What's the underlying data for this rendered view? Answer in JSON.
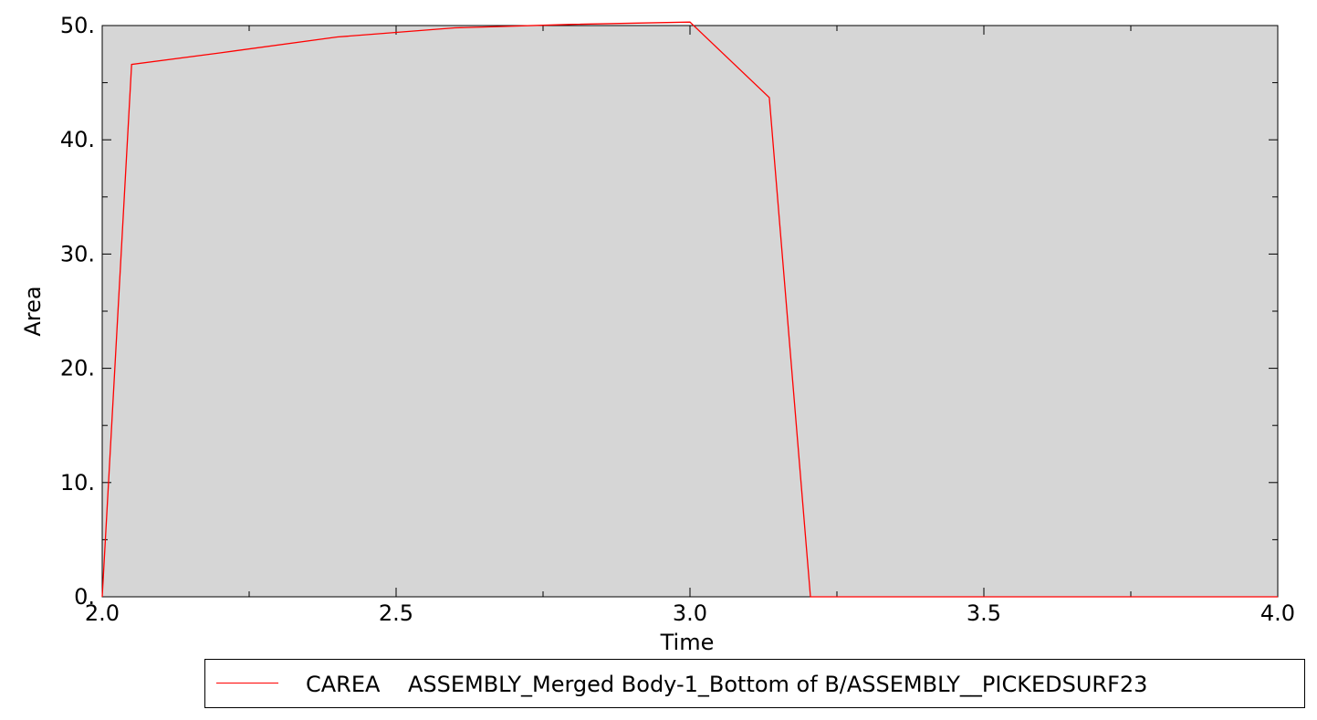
{
  "chart_data": {
    "type": "line",
    "xlabel": "Time",
    "ylabel": "Area",
    "xlim": [
      2.0,
      4.0
    ],
    "ylim": [
      0,
      50
    ],
    "x_ticks": [
      "2.0",
      "2.5",
      "3.0",
      "3.5",
      "4.0"
    ],
    "y_ticks": [
      "0.",
      "10.",
      "20.",
      "30.",
      "40.",
      "50."
    ],
    "grid": false,
    "legend_position": "bottom-right",
    "series": [
      {
        "name": "CAREA    ASSEMBLY_Merged Body-1_Bottom of B/ASSEMBLY__PICKEDSURF23",
        "color": "#ff0000",
        "x": [
          2.0,
          2.05,
          2.2,
          2.4,
          2.6,
          2.8,
          3.0,
          3.135,
          3.205,
          3.4,
          3.6,
          3.8,
          4.0
        ],
        "y": [
          0,
          46.6,
          47.6,
          49.0,
          49.8,
          50.1,
          50.3,
          43.7,
          0,
          0,
          0,
          0,
          0
        ]
      }
    ]
  },
  "colors": {
    "plot_background": "#d6d6d6",
    "series_line": "#ff0000"
  }
}
